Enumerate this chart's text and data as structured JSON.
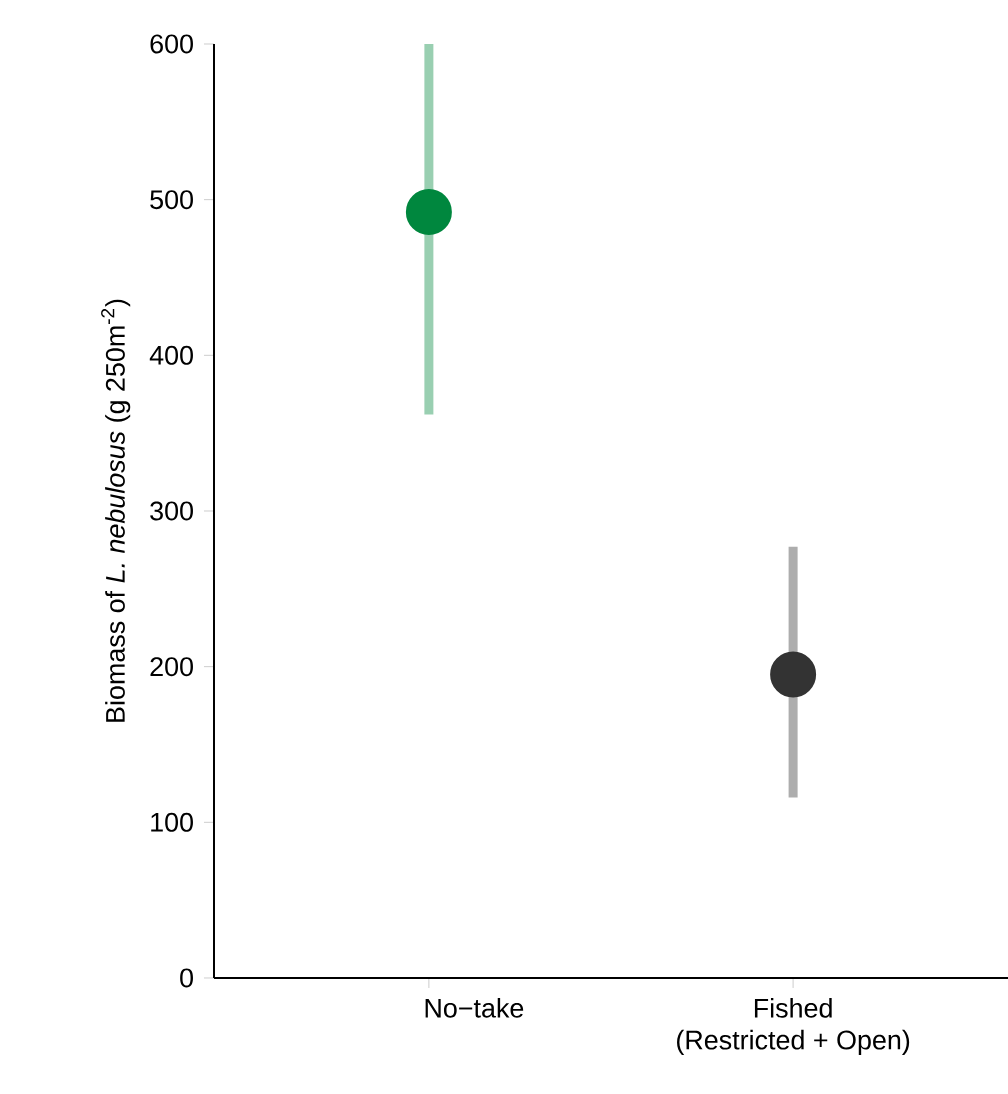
{
  "chart_data": {
    "type": "scatter",
    "ylabel": "Biomass of *L. nebulosus* (g 250m$^{-2}$)",
    "categories": [
      "No−take",
      "Fished (Restricted + Open)"
    ],
    "values": [
      492,
      195
    ],
    "colors": [
      "#00873e",
      "#333333"
    ],
    "errors": [
      [
        362,
        600
      ],
      [
        116,
        277
      ]
    ],
    "ylim": [
      0,
      600
    ],
    "yticks": [
      0,
      100,
      200,
      300,
      400,
      500,
      600
    ],
    "grid": false
  }
}
